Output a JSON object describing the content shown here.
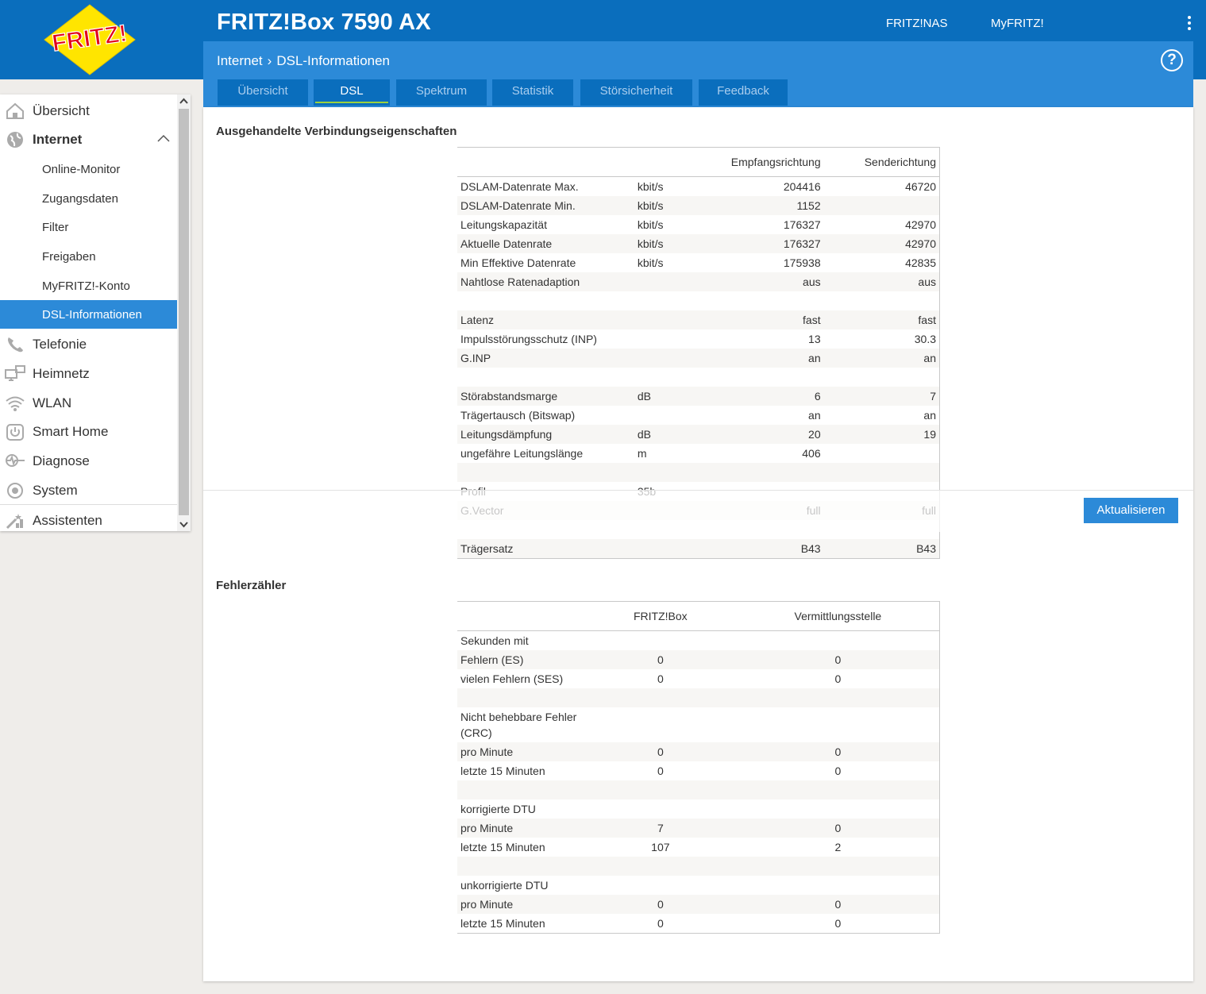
{
  "header": {
    "brand": "FRITZ!",
    "title": "FRITZ!Box 7590 AX",
    "links": [
      "FRITZ!NAS",
      "MyFRITZ!"
    ]
  },
  "breadcrumb": {
    "parent": "Internet",
    "current": "DSL-Informationen"
  },
  "help_label": "?",
  "tabs": [
    "Übersicht",
    "DSL",
    "Spektrum",
    "Statistik",
    "Störsicherheit",
    "Feedback"
  ],
  "sidebar": {
    "items": [
      {
        "label": "Übersicht",
        "icon": "home-icon"
      },
      {
        "label": "Internet",
        "icon": "globe-icon"
      },
      {
        "label": "Telefonie",
        "icon": "phone-icon"
      },
      {
        "label": "Heimnetz",
        "icon": "network-icon"
      },
      {
        "label": "WLAN",
        "icon": "wifi-icon"
      },
      {
        "label": "Smart Home",
        "icon": "power-icon"
      },
      {
        "label": "Diagnose",
        "icon": "diagnose-icon"
      },
      {
        "label": "System",
        "icon": "system-icon"
      },
      {
        "label": "Assistenten",
        "icon": "wizard-icon"
      }
    ],
    "subitems": [
      "Online-Monitor",
      "Zugangsdaten",
      "Filter",
      "Freigaben",
      "MyFRITZ!-Konto",
      "DSL-Informationen"
    ],
    "active": "DSL-Informationen"
  },
  "section1": {
    "title": "Ausgehandelte Verbindungseigenschaften",
    "headers": [
      "",
      "",
      "Empfangsrichtung",
      "Senderichtung"
    ],
    "rows": [
      [
        "DSLAM-Datenrate Max.",
        "kbit/s",
        "204416",
        "46720"
      ],
      [
        "DSLAM-Datenrate Min.",
        "kbit/s",
        "1152",
        ""
      ],
      [
        "Leitungskapazität",
        "kbit/s",
        "176327",
        "42970"
      ],
      [
        "Aktuelle Datenrate",
        "kbit/s",
        "176327",
        "42970"
      ],
      [
        "Min Effektive Datenrate",
        "kbit/s",
        "175938",
        "42835"
      ],
      [
        "Nahtlose Ratenadaption",
        "",
        "aus",
        "aus"
      ],
      [
        "",
        "",
        "",
        ""
      ],
      [
        "Latenz",
        "",
        "fast",
        "fast"
      ],
      [
        "Impulsstörungsschutz (INP)",
        "",
        "13",
        "30.3"
      ],
      [
        "G.INP",
        "",
        "an",
        "an"
      ],
      [
        "",
        "",
        "",
        ""
      ],
      [
        "Störabstandsmarge",
        "dB",
        "6",
        "7"
      ],
      [
        "Trägertausch (Bitswap)",
        "",
        "an",
        "an"
      ],
      [
        "Leitungsdämpfung",
        "dB",
        "20",
        "19"
      ],
      [
        "ungefähre Leitungslänge",
        "m",
        "406",
        ""
      ],
      [
        "",
        "",
        "",
        ""
      ],
      [
        "Profil",
        "35b",
        "",
        ""
      ],
      [
        "G.Vector",
        "",
        "full",
        "full"
      ],
      [
        "",
        "",
        "",
        ""
      ],
      [
        "Trägersatz",
        "",
        "B43",
        "B43"
      ]
    ]
  },
  "section2": {
    "title": "Fehlerzähler",
    "headers": [
      "",
      "FRITZ!Box",
      "Vermittlungsstelle"
    ],
    "rows": [
      [
        "Sekunden mit",
        "",
        ""
      ],
      [
        "Fehlern (ES)",
        "0",
        "0"
      ],
      [
        "vielen Fehlern (SES)",
        "0",
        "0"
      ],
      [
        "",
        "",
        ""
      ],
      [
        "Nicht behebbare Fehler (CRC)",
        "",
        ""
      ],
      [
        "pro Minute",
        "0",
        "0"
      ],
      [
        "letzte 15 Minuten",
        "0",
        "0"
      ],
      [
        "",
        "",
        ""
      ],
      [
        "korrigierte DTU",
        "",
        ""
      ],
      [
        "pro Minute",
        "7",
        "0"
      ],
      [
        "letzte 15 Minuten",
        "107",
        "2"
      ],
      [
        "",
        "",
        ""
      ],
      [
        "unkorrigierte DTU",
        "",
        ""
      ],
      [
        "pro Minute",
        "0",
        "0"
      ],
      [
        "letzte 15 Minuten",
        "0",
        "0"
      ]
    ]
  },
  "refresh_button": "Aktualisieren"
}
